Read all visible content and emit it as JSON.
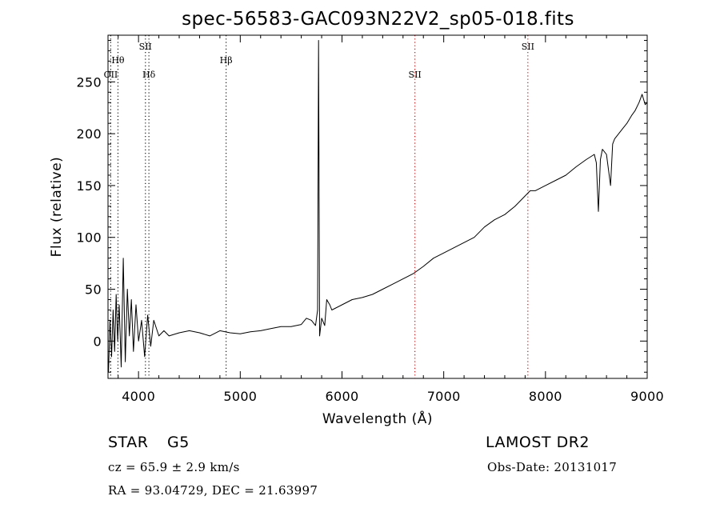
{
  "chart_data": {
    "type": "line",
    "title": "spec-56583-GAC093N22V2_sp05-018.fits",
    "xlabel": "Wavelength (Å)",
    "ylabel": "Flux (relative)",
    "xlim": [
      3700,
      9000
    ],
    "ylim": [
      -36,
      295
    ],
    "xticks": [
      4000,
      5000,
      6000,
      7000,
      8000,
      9000
    ],
    "yticks": [
      0,
      50,
      100,
      150,
      200,
      250
    ],
    "grid": false,
    "legend": "none",
    "series": [
      {
        "color": "#000000",
        "x": [
          3705,
          3720,
          3735,
          3750,
          3765,
          3780,
          3795,
          3810,
          3830,
          3850,
          3870,
          3890,
          3910,
          3930,
          3950,
          3975,
          4000,
          4030,
          4060,
          4090,
          4120,
          4150,
          4200,
          4250,
          4300,
          4400,
          4500,
          4600,
          4700,
          4800,
          4900,
          5000,
          5100,
          5200,
          5300,
          5400,
          5500,
          5600,
          5650,
          5700,
          5740,
          5760,
          5770,
          5780,
          5800,
          5830,
          5850,
          5880,
          5900,
          6000,
          6100,
          6200,
          6300,
          6400,
          6500,
          6600,
          6700,
          6800,
          6900,
          7000,
          7100,
          7200,
          7300,
          7400,
          7500,
          7600,
          7700,
          7800,
          7850,
          7900,
          8000,
          8100,
          8200,
          8300,
          8400,
          8480,
          8500,
          8520,
          8540,
          8560,
          8600,
          8640,
          8660,
          8680,
          8720,
          8760,
          8800,
          8850,
          8880,
          8920,
          8950,
          8980,
          9000
        ],
        "y": [
          -30,
          20,
          -15,
          30,
          -10,
          45,
          0,
          35,
          -25,
          80,
          -20,
          50,
          5,
          40,
          -10,
          35,
          0,
          20,
          -15,
          25,
          -5,
          20,
          5,
          10,
          5,
          8,
          10,
          8,
          5,
          10,
          8,
          7,
          9,
          10,
          12,
          14,
          14,
          16,
          22,
          20,
          15,
          30,
          290,
          5,
          22,
          15,
          40,
          35,
          30,
          35,
          40,
          42,
          45,
          50,
          55,
          60,
          65,
          72,
          80,
          85,
          90,
          95,
          100,
          110,
          117,
          122,
          130,
          140,
          145,
          145,
          150,
          155,
          160,
          168,
          175,
          180,
          172,
          125,
          175,
          185,
          180,
          150,
          190,
          195,
          200,
          205,
          210,
          218,
          222,
          230,
          238,
          228,
          230
        ]
      }
    ],
    "annotations": [
      {
        "label": "OII",
        "x": 3727,
        "color": "#000000",
        "row": 3
      },
      {
        "label": "Hθ",
        "x": 3798,
        "color": "#000000",
        "row": 2
      },
      {
        "label": "SII",
        "x": 4068,
        "color": "#000000",
        "row": 1
      },
      {
        "label": "Hδ",
        "x": 4102,
        "color": "#000000",
        "row": 3
      },
      {
        "label": "Hβ",
        "x": 4861,
        "color": "#000000",
        "row": 2
      },
      {
        "label": "SII",
        "x": 6717,
        "color": "#c00000",
        "row": 3
      },
      {
        "label": "SII",
        "x": 7827,
        "color": "#c00000",
        "row": 1
      }
    ]
  },
  "info": {
    "class": "STAR",
    "subclass": "G5",
    "survey": "LAMOST DR2",
    "cz": "cz = 65.9 ± 2.9 km/s",
    "obs_date": "Obs-Date: 20131017",
    "radec": "RA =  93.04729, DEC =  21.63997"
  }
}
